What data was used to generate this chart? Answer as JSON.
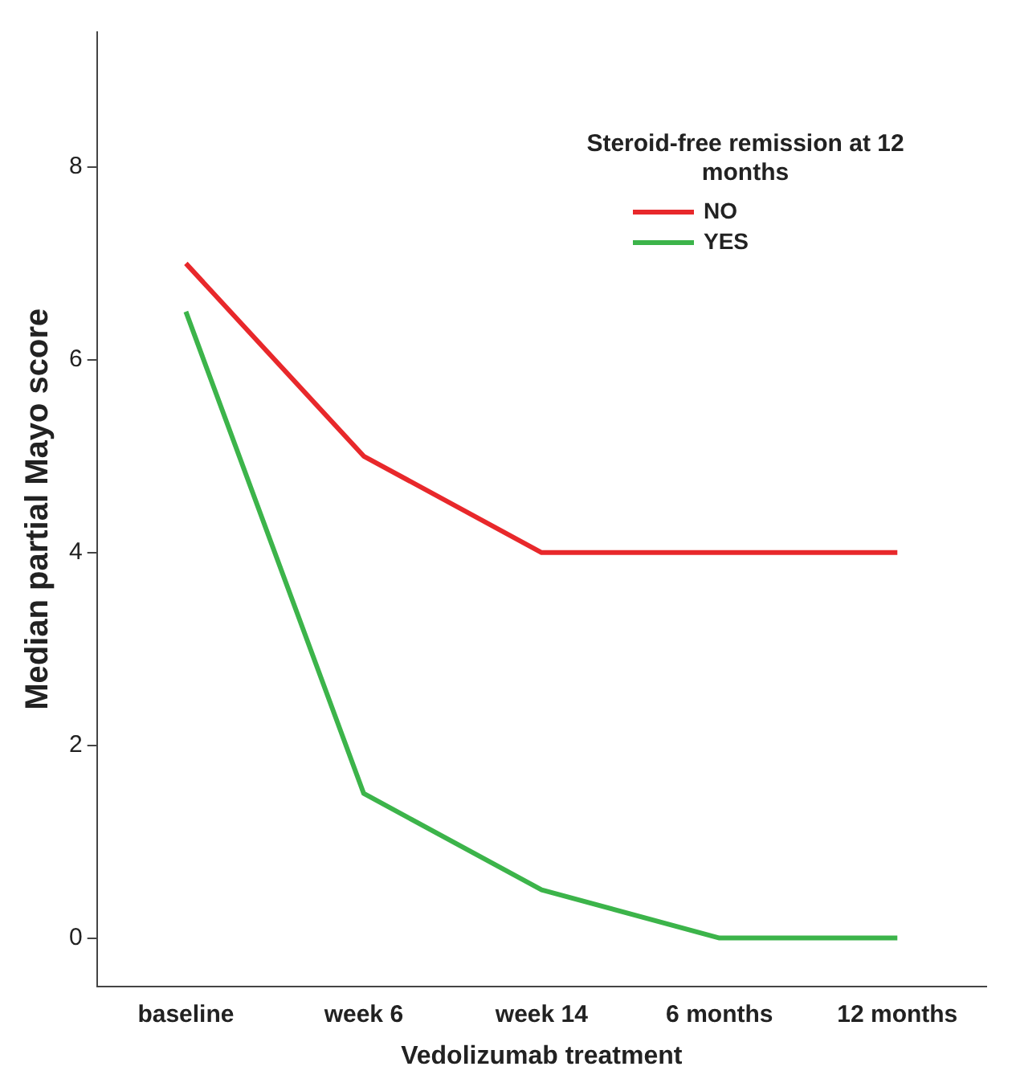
{
  "chart_data": {
    "type": "line",
    "xlabel": "Vedolizumab treatment",
    "ylabel": "Median partial Mayo score",
    "legend_title": "Steroid-free remission at 12 months",
    "categories": [
      "baseline",
      "week 6",
      "week 14",
      "6 months",
      "12 months"
    ],
    "series": [
      {
        "name": "NO",
        "color": "#e8282b",
        "values": [
          7,
          5,
          4,
          4,
          4
        ]
      },
      {
        "name": "YES",
        "color": "#3cb44a",
        "values": [
          6.5,
          1.5,
          0.5,
          0,
          0
        ]
      }
    ],
    "ylim": [
      -0.5,
      9.4
    ],
    "yticks": [
      0,
      2,
      4,
      6,
      8
    ],
    "grid": false,
    "legend": "top right",
    "marker": "none",
    "line_style": "solid"
  }
}
